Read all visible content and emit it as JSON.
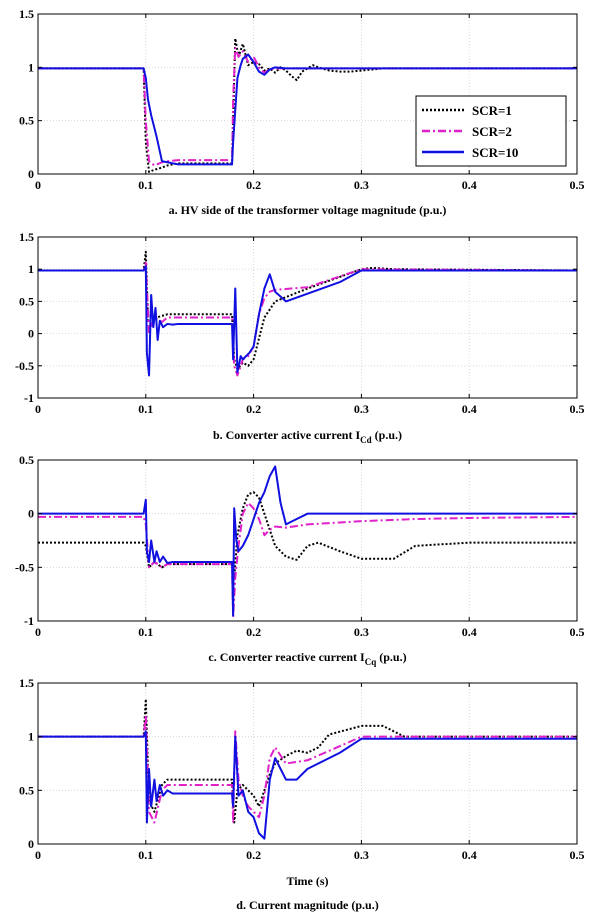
{
  "chart_data": [
    {
      "type": "line",
      "caption": "a. HV side of the transformer voltage magnitude (p.u.)",
      "xlabel": "",
      "ylabel": "",
      "xlim": [
        0,
        0.5
      ],
      "ylim": [
        0,
        1.5
      ],
      "xticks": [
        "0",
        "0.1",
        "0.2",
        "0.3",
        "0.4",
        "0.5"
      ],
      "yticks": [
        "0",
        "0.5",
        "1",
        "1.5"
      ],
      "grid": true,
      "legend": {
        "placement": "bottom-right",
        "entries": [
          "SCR=1",
          "SCR=2",
          "SCR=10"
        ]
      },
      "series": [
        {
          "name": "SCR=1",
          "color": "#000000",
          "style": "dotted",
          "x": [
            0,
            0.098,
            0.1,
            0.103,
            0.108,
            0.115,
            0.12,
            0.13,
            0.18,
            0.181,
            0.183,
            0.186,
            0.19,
            0.195,
            0.2,
            0.205,
            0.21,
            0.215,
            0.22,
            0.225,
            0.23,
            0.235,
            0.24,
            0.245,
            0.25,
            0.255,
            0.26,
            0.27,
            0.28,
            0.29,
            0.3,
            0.31,
            0.32,
            0.5
          ],
          "y": [
            0.99,
            0.99,
            0.3,
            0.02,
            0.04,
            0.06,
            0.08,
            0.1,
            0.1,
            0.5,
            1.27,
            1.1,
            1.22,
            1.02,
            1.05,
            1.03,
            0.97,
            0.99,
            0.95,
            1.0,
            0.97,
            0.92,
            0.88,
            0.96,
            0.99,
            1.02,
            1.0,
            0.97,
            0.96,
            0.96,
            0.97,
            0.98,
            0.99,
            0.99
          ]
        },
        {
          "name": "SCR=2",
          "color": "#e020c8",
          "style": "dashdot",
          "x": [
            0,
            0.098,
            0.1,
            0.103,
            0.108,
            0.115,
            0.12,
            0.13,
            0.18,
            0.181,
            0.183,
            0.186,
            0.19,
            0.195,
            0.2,
            0.205,
            0.21,
            0.215,
            0.22,
            0.23,
            0.24,
            0.5
          ],
          "y": [
            0.99,
            0.99,
            0.5,
            0.12,
            0.08,
            0.11,
            0.12,
            0.13,
            0.13,
            0.7,
            1.18,
            1.1,
            1.15,
            1.05,
            1.1,
            1.0,
            0.95,
            0.98,
            0.99,
            0.99,
            0.99,
            0.99
          ]
        },
        {
          "name": "SCR=10",
          "color": "#1010e0",
          "style": "solid",
          "x": [
            0,
            0.098,
            0.1,
            0.102,
            0.105,
            0.11,
            0.115,
            0.12,
            0.125,
            0.13,
            0.18,
            0.181,
            0.183,
            0.185,
            0.188,
            0.19,
            0.195,
            0.2,
            0.205,
            0.21,
            0.215,
            0.22,
            0.23,
            0.5
          ],
          "y": [
            0.99,
            0.99,
            0.9,
            0.7,
            0.55,
            0.35,
            0.12,
            0.11,
            0.1,
            0.09,
            0.09,
            0.3,
            0.6,
            0.9,
            1.02,
            1.08,
            1.12,
            1.05,
            0.96,
            0.93,
            0.98,
            1.0,
            0.99,
            0.99
          ]
        }
      ]
    },
    {
      "type": "line",
      "caption": "b. Converter active current ",
      "caption_sym": "I",
      "caption_sub": "Cd",
      "caption_suffix": " (p.u.)",
      "xlabel": "",
      "ylabel": "",
      "xlim": [
        0,
        0.5
      ],
      "ylim": [
        -1,
        1.5
      ],
      "xticks": [
        "0",
        "0.1",
        "0.2",
        "0.3",
        "0.4",
        "0.5"
      ],
      "yticks": [
        "-1",
        "-0.5",
        "0",
        "0.5",
        "1",
        "1.5"
      ],
      "grid": true,
      "series": [
        {
          "name": "SCR=1",
          "color": "#000000",
          "style": "dotted",
          "x": [
            0,
            0.098,
            0.1,
            0.102,
            0.105,
            0.11,
            0.12,
            0.18,
            0.182,
            0.185,
            0.19,
            0.195,
            0.2,
            0.21,
            0.22,
            0.25,
            0.3,
            0.31,
            0.33,
            0.5
          ],
          "y": [
            0.98,
            0.98,
            1.27,
            0.2,
            0.15,
            0.25,
            0.3,
            0.3,
            -0.4,
            -0.55,
            -0.45,
            -0.5,
            -0.4,
            0.25,
            0.5,
            0.7,
            1.0,
            1.02,
            1.0,
            0.98
          ]
        },
        {
          "name": "SCR=2",
          "color": "#e020c8",
          "style": "dashdot",
          "x": [
            0,
            0.098,
            0.1,
            0.103,
            0.108,
            0.115,
            0.12,
            0.18,
            0.182,
            0.185,
            0.19,
            0.195,
            0.2,
            0.205,
            0.21,
            0.215,
            0.22,
            0.25,
            0.3,
            0.5
          ],
          "y": [
            0.98,
            0.98,
            1.1,
            0.0,
            0.25,
            0.18,
            0.25,
            0.25,
            -0.5,
            -0.65,
            -0.4,
            -0.35,
            -0.2,
            0.3,
            0.55,
            0.65,
            0.68,
            0.72,
            1.0,
            0.98
          ]
        },
        {
          "name": "SCR=10",
          "color": "#1010e0",
          "style": "solid",
          "x": [
            0,
            0.098,
            0.1,
            0.101,
            0.103,
            0.105,
            0.107,
            0.109,
            0.111,
            0.113,
            0.116,
            0.12,
            0.125,
            0.13,
            0.18,
            0.181,
            0.183,
            0.185,
            0.188,
            0.19,
            0.193,
            0.196,
            0.2,
            0.205,
            0.21,
            0.215,
            0.22,
            0.23,
            0.25,
            0.28,
            0.3,
            0.5
          ],
          "y": [
            0.98,
            0.98,
            1.05,
            -0.3,
            -0.65,
            0.6,
            0.1,
            0.4,
            -0.1,
            0.2,
            0.1,
            0.15,
            0.14,
            0.15,
            0.15,
            -0.4,
            0.7,
            -0.6,
            -0.35,
            -0.4,
            -0.35,
            -0.3,
            -0.2,
            0.3,
            0.7,
            0.92,
            0.65,
            0.5,
            0.62,
            0.8,
            0.98,
            0.98
          ]
        }
      ]
    },
    {
      "type": "line",
      "caption": "c. Converter reactive current ",
      "caption_sym": "I",
      "caption_sub": "Cq",
      "caption_suffix": " (p.u.)",
      "xlabel": "",
      "ylabel": "",
      "xlim": [
        0,
        0.5
      ],
      "ylim": [
        -1,
        0.5
      ],
      "xticks": [
        "0",
        "0.1",
        "0.2",
        "0.3",
        "0.4",
        "0.5"
      ],
      "yticks": [
        "-1",
        "-0.5",
        "0",
        "0.5"
      ],
      "grid": true,
      "series": [
        {
          "name": "SCR=1",
          "color": "#000000",
          "style": "dotted",
          "x": [
            0,
            0.098,
            0.1,
            0.103,
            0.108,
            0.115,
            0.12,
            0.18,
            0.182,
            0.185,
            0.19,
            0.195,
            0.2,
            0.205,
            0.21,
            0.215,
            0.22,
            0.23,
            0.24,
            0.25,
            0.26,
            0.28,
            0.3,
            0.33,
            0.35,
            0.4,
            0.45,
            0.5
          ],
          "y": [
            -0.27,
            -0.27,
            -0.3,
            -0.5,
            -0.45,
            -0.5,
            -0.47,
            -0.47,
            -0.6,
            -0.2,
            0.05,
            0.18,
            0.2,
            0.15,
            0.0,
            -0.15,
            -0.3,
            -0.4,
            -0.43,
            -0.3,
            -0.27,
            -0.35,
            -0.42,
            -0.42,
            -0.3,
            -0.27,
            -0.27,
            -0.27
          ]
        },
        {
          "name": "SCR=2",
          "color": "#e020c8",
          "style": "dashdot",
          "x": [
            0,
            0.098,
            0.1,
            0.103,
            0.108,
            0.115,
            0.12,
            0.18,
            0.181,
            0.183,
            0.186,
            0.19,
            0.195,
            0.2,
            0.205,
            0.21,
            0.215,
            0.22,
            0.23,
            0.25,
            0.3,
            0.35,
            0.4,
            0.5
          ],
          "y": [
            -0.03,
            -0.03,
            -0.1,
            -0.5,
            -0.45,
            -0.5,
            -0.47,
            -0.47,
            -0.97,
            -0.6,
            -0.3,
            0.0,
            0.1,
            0.05,
            -0.05,
            -0.2,
            -0.15,
            -0.12,
            -0.13,
            -0.1,
            -0.07,
            -0.05,
            -0.04,
            -0.03
          ]
        },
        {
          "name": "SCR=10",
          "color": "#1010e0",
          "style": "solid",
          "x": [
            0,
            0.098,
            0.1,
            0.101,
            0.103,
            0.105,
            0.108,
            0.11,
            0.113,
            0.116,
            0.12,
            0.125,
            0.13,
            0.18,
            0.181,
            0.182,
            0.184,
            0.186,
            0.19,
            0.195,
            0.2,
            0.205,
            0.21,
            0.215,
            0.22,
            0.225,
            0.23,
            0.24,
            0.25,
            0.3,
            0.5
          ],
          "y": [
            0.0,
            0.0,
            0.13,
            -0.35,
            -0.45,
            -0.25,
            -0.45,
            -0.35,
            -0.45,
            -0.4,
            -0.46,
            -0.45,
            -0.45,
            -0.45,
            -0.95,
            0.05,
            -0.25,
            -0.35,
            -0.3,
            -0.2,
            -0.05,
            0.1,
            0.2,
            0.35,
            0.44,
            0.1,
            -0.1,
            -0.05,
            0.0,
            0.0,
            0.0
          ]
        }
      ]
    },
    {
      "type": "line",
      "caption": "d. Current magnitude (p.u.)",
      "xlabel": "Time (s)",
      "ylabel": "",
      "xlim": [
        0,
        0.5
      ],
      "ylim": [
        0,
        1.5
      ],
      "xticks": [
        "0",
        "0.1",
        "0.2",
        "0.3",
        "0.4",
        "0.5"
      ],
      "yticks": [
        "0",
        "0.5",
        "1",
        "1.5"
      ],
      "grid": true,
      "series": [
        {
          "name": "SCR=1",
          "color": "#000000",
          "style": "dotted",
          "x": [
            0,
            0.098,
            0.1,
            0.103,
            0.108,
            0.115,
            0.12,
            0.13,
            0.18,
            0.182,
            0.185,
            0.19,
            0.195,
            0.2,
            0.205,
            0.21,
            0.215,
            0.22,
            0.23,
            0.24,
            0.25,
            0.26,
            0.27,
            0.3,
            0.32,
            0.33,
            0.34,
            0.5
          ],
          "y": [
            1.0,
            1.0,
            1.35,
            0.4,
            0.3,
            0.55,
            0.6,
            0.6,
            0.6,
            0.2,
            0.5,
            0.55,
            0.5,
            0.45,
            0.35,
            0.5,
            0.65,
            0.75,
            0.82,
            0.87,
            0.85,
            0.9,
            1.02,
            1.1,
            1.1,
            1.05,
            1.0,
            1.0
          ]
        },
        {
          "name": "SCR=2",
          "color": "#e020c8",
          "style": "dashdot",
          "x": [
            0,
            0.098,
            0.1,
            0.103,
            0.108,
            0.115,
            0.12,
            0.18,
            0.181,
            0.183,
            0.186,
            0.19,
            0.195,
            0.2,
            0.205,
            0.21,
            0.215,
            0.22,
            0.23,
            0.25,
            0.3,
            0.5
          ],
          "y": [
            1.0,
            1.0,
            1.2,
            0.3,
            0.2,
            0.5,
            0.55,
            0.55,
            0.2,
            1.05,
            0.6,
            0.45,
            0.35,
            0.3,
            0.25,
            0.45,
            0.8,
            0.9,
            0.75,
            0.78,
            1.0,
            1.0
          ]
        },
        {
          "name": "SCR=10",
          "color": "#1010e0",
          "style": "solid",
          "x": [
            0,
            0.098,
            0.1,
            0.101,
            0.103,
            0.105,
            0.108,
            0.11,
            0.113,
            0.116,
            0.12,
            0.125,
            0.13,
            0.18,
            0.181,
            0.183,
            0.186,
            0.19,
            0.195,
            0.2,
            0.205,
            0.21,
            0.215,
            0.22,
            0.225,
            0.23,
            0.24,
            0.25,
            0.28,
            0.3,
            0.5
          ],
          "y": [
            1.0,
            1.0,
            1.05,
            0.2,
            0.7,
            0.35,
            0.6,
            0.4,
            0.55,
            0.45,
            0.5,
            0.47,
            0.47,
            0.47,
            0.35,
            1.0,
            0.45,
            0.5,
            0.3,
            0.25,
            0.1,
            0.05,
            0.6,
            0.8,
            0.7,
            0.6,
            0.6,
            0.7,
            0.85,
            0.98,
            0.98
          ]
        }
      ]
    }
  ]
}
